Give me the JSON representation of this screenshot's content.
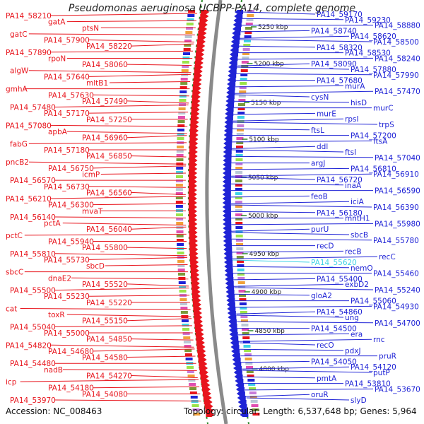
{
  "title": "Pseudomonas aeruginosa UCBPP-PA14, complete genome",
  "accession": "Accession: NC_008463",
  "summary": "Topology: circular; Length: 6,537,648 bp; Genes: 5,964",
  "colors": {
    "left": "#e8141c",
    "right": "#1f23d6",
    "highlight": "#3fd3e6",
    "backbone": "#8a8a8a",
    "ticks": "#2a8a2a"
  },
  "kbp_ticks": [
    "5250 kbp",
    "5200 kbp",
    "5150 kbp",
    "5100 kbp",
    "5050 kbp",
    "5000 kbp",
    "4950 kbp",
    "4900 kbp",
    "4850 kbp",
    "4800 kbp"
  ],
  "left_labels": [
    "PA14_58210",
    "gatA",
    "ptsN",
    "gatC",
    "PA14_57900",
    "PA14_58220",
    "PA14_57890",
    "rpoN",
    "PA14_58060",
    "algW",
    "PA14_57640",
    "mltB1",
    "gmhA",
    "PA14_57630",
    "PA14_57490",
    "PA14_57480",
    "PA14_57170",
    "PA14_57250",
    "PA14_57080",
    "apbA",
    "PA14_56960",
    "fabG",
    "PA14_57180",
    "PA14_56850",
    "pncB2",
    "PA14_56750",
    "icmP",
    "PA14_56570",
    "PA14_56730",
    "PA14_56560",
    "PA14_56210",
    "PA14_56300",
    "mvaT",
    "PA14_56140",
    "pctA",
    "PA14_56040",
    "pctC",
    "PA14_55940",
    "PA14_55800",
    "PA14_55810",
    "PA14_55730",
    "sbcD",
    "sbcC",
    "dnaE2",
    "PA14_55520",
    "PA14_55500",
    "PA14_55230",
    "PA14_55220",
    "cat",
    "toxR",
    "PA14_55150",
    "PA14_55040",
    "PA14_55000",
    "PA14_54850",
    "PA14_54820",
    "PA14_54680",
    "PA14_54580",
    "PA14_54480",
    "nadB",
    "PA14_54270",
    "icp",
    "PA14_54180",
    "PA14_54080",
    "PA14_53970"
  ],
  "right_labels": [
    "PA14_59170",
    "PA14_59230",
    "PA14_58880",
    "PA14_58740",
    "PA14_58620",
    "PA14_58500",
    "PA14_58320",
    "PA14_58530",
    "PA14_58240",
    "PA14_58090",
    "PA14_57880",
    "PA14_57990",
    "PA14_57680",
    "murA",
    "PA14_57470",
    "cysN",
    "hisD",
    "murC",
    "murE",
    "rpsI",
    "trpS",
    "ftsL",
    "PA14_57200",
    "ftsA",
    "ddl",
    "ftsI",
    "PA14_57040",
    "argJ",
    "PA14_56810",
    "PA14_56910",
    "PA14_56720",
    "inaA",
    "PA14_56590",
    "feoB",
    "iciA",
    "PA14_56390",
    "PA14_56180",
    "mntH1",
    "PA14_55980",
    "purU",
    "sbcB",
    "PA14_55780",
    "recD",
    "recB",
    "recC",
    "PA14_55620",
    "nemO",
    "PA14_55460",
    "PA14_55400",
    "exbD2",
    "PA14_55240",
    "gloA2",
    "PA14_55060",
    "PA14_54930",
    "PA14_54860",
    "ung",
    "PA14_54700",
    "PA14_54500",
    "era",
    "rnc",
    "recO",
    "pdxJ",
    "pruR",
    "PA14_54050",
    "PA14_54120",
    "putP",
    "pmtA",
    "PA14_53810",
    "PA14_53670",
    "oruR",
    "slyD"
  ]
}
